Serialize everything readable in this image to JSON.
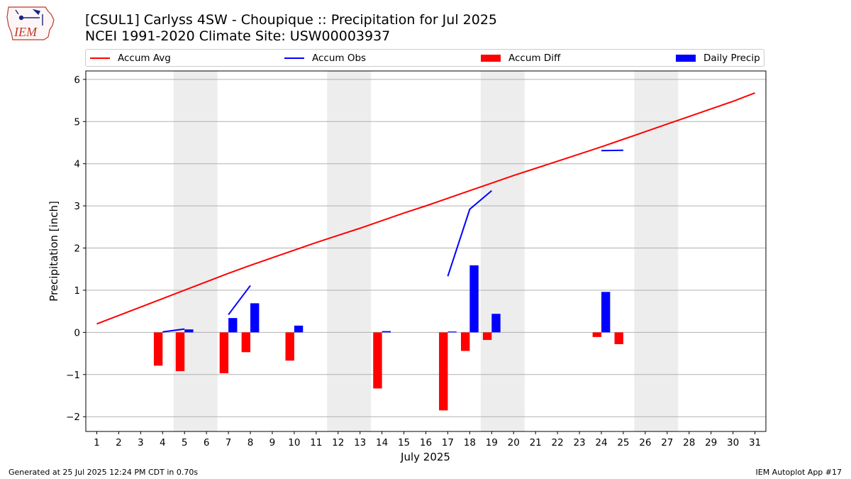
{
  "header": {
    "title_line1": "[CSUL1] Carlyss 4SW - Choupique :: Precipitation for Jul 2025",
    "title_line2": "NCEI 1991-2020 Climate Site: USW00003937",
    "logo_text": "IEM"
  },
  "footer": {
    "generated": "Generated at 25 Jul 2025 12:24 PM CDT in 0.70s",
    "app": "IEM Autoplot App #17"
  },
  "colors": {
    "accum_avg": "#ff0000",
    "accum_obs": "#0000ff",
    "accum_diff": "#ff0000",
    "daily_precip": "#0000ff",
    "weekend_shade": "#ededed",
    "grid": "#b0b0b0"
  },
  "chart_data": {
    "type": "bar",
    "title": "[CSUL1] Carlyss 4SW - Choupique :: Precipitation for Jul 2025",
    "xlabel": "July 2025",
    "ylabel": "Precipitation [inch]",
    "xlim": [
      0.5,
      31.5
    ],
    "ylim": [
      -2.35,
      6.2
    ],
    "yticks": [
      -2,
      -1,
      0,
      1,
      2,
      3,
      4,
      5,
      6
    ],
    "ytick_labels": [
      "−2",
      "−1",
      "0",
      "1",
      "2",
      "3",
      "4",
      "5",
      "6"
    ],
    "days": [
      1,
      2,
      3,
      4,
      5,
      6,
      7,
      8,
      9,
      10,
      11,
      12,
      13,
      14,
      15,
      16,
      17,
      18,
      19,
      20,
      21,
      22,
      23,
      24,
      25,
      26,
      27,
      28,
      29,
      30,
      31
    ],
    "weekends": [
      [
        5,
        6
      ],
      [
        12,
        13
      ],
      [
        19,
        20
      ],
      [
        26,
        27
      ]
    ],
    "legend": [
      "Accum Avg",
      "Accum Obs",
      "Accum Diff",
      "Daily Precip"
    ],
    "series": [
      {
        "name": "Accum Avg",
        "kind": "line",
        "x": [
          1,
          2,
          3,
          4,
          5,
          6,
          7,
          8,
          9,
          10,
          11,
          12,
          13,
          14,
          15,
          16,
          17,
          18,
          19,
          20,
          21,
          22,
          23,
          24,
          25,
          26,
          27,
          28,
          29,
          30,
          31
        ],
        "values": [
          0.2,
          0.4,
          0.6,
          0.8,
          1.0,
          1.2,
          1.4,
          1.59,
          1.77,
          1.95,
          2.13,
          2.3,
          2.47,
          2.65,
          2.83,
          3.0,
          3.18,
          3.36,
          3.54,
          3.72,
          3.89,
          4.06,
          4.23,
          4.4,
          4.58,
          4.76,
          4.94,
          5.12,
          5.3,
          5.48,
          5.68
        ]
      },
      {
        "name": "Accum Obs",
        "kind": "line",
        "segments": [
          {
            "x": [
              4,
              5
            ],
            "values": [
              0.01,
              0.08
            ]
          },
          {
            "x": [
              7,
              8
            ],
            "values": [
              0.42,
              1.11
            ]
          },
          {
            "x": [
              17,
              18,
              19
            ],
            "values": [
              1.33,
              2.92,
              3.36
            ]
          },
          {
            "x": [
              24,
              25
            ],
            "values": [
              4.31,
              4.32
            ]
          }
        ]
      },
      {
        "name": "Accum Diff",
        "kind": "bar",
        "x": [
          4,
          5,
          7,
          8,
          10,
          14,
          17,
          18,
          19,
          24,
          25
        ],
        "values": [
          -0.79,
          -0.92,
          -0.97,
          -0.47,
          -0.67,
          -1.33,
          -1.85,
          -0.44,
          -0.18,
          -0.11,
          -0.28
        ]
      },
      {
        "name": "Daily Precip",
        "kind": "bar",
        "x": [
          5,
          7,
          8,
          10,
          14,
          17,
          18,
          19,
          24
        ],
        "values": [
          0.07,
          0.34,
          0.69,
          0.16,
          0.03,
          0.02,
          1.59,
          0.44,
          0.96
        ]
      }
    ]
  }
}
